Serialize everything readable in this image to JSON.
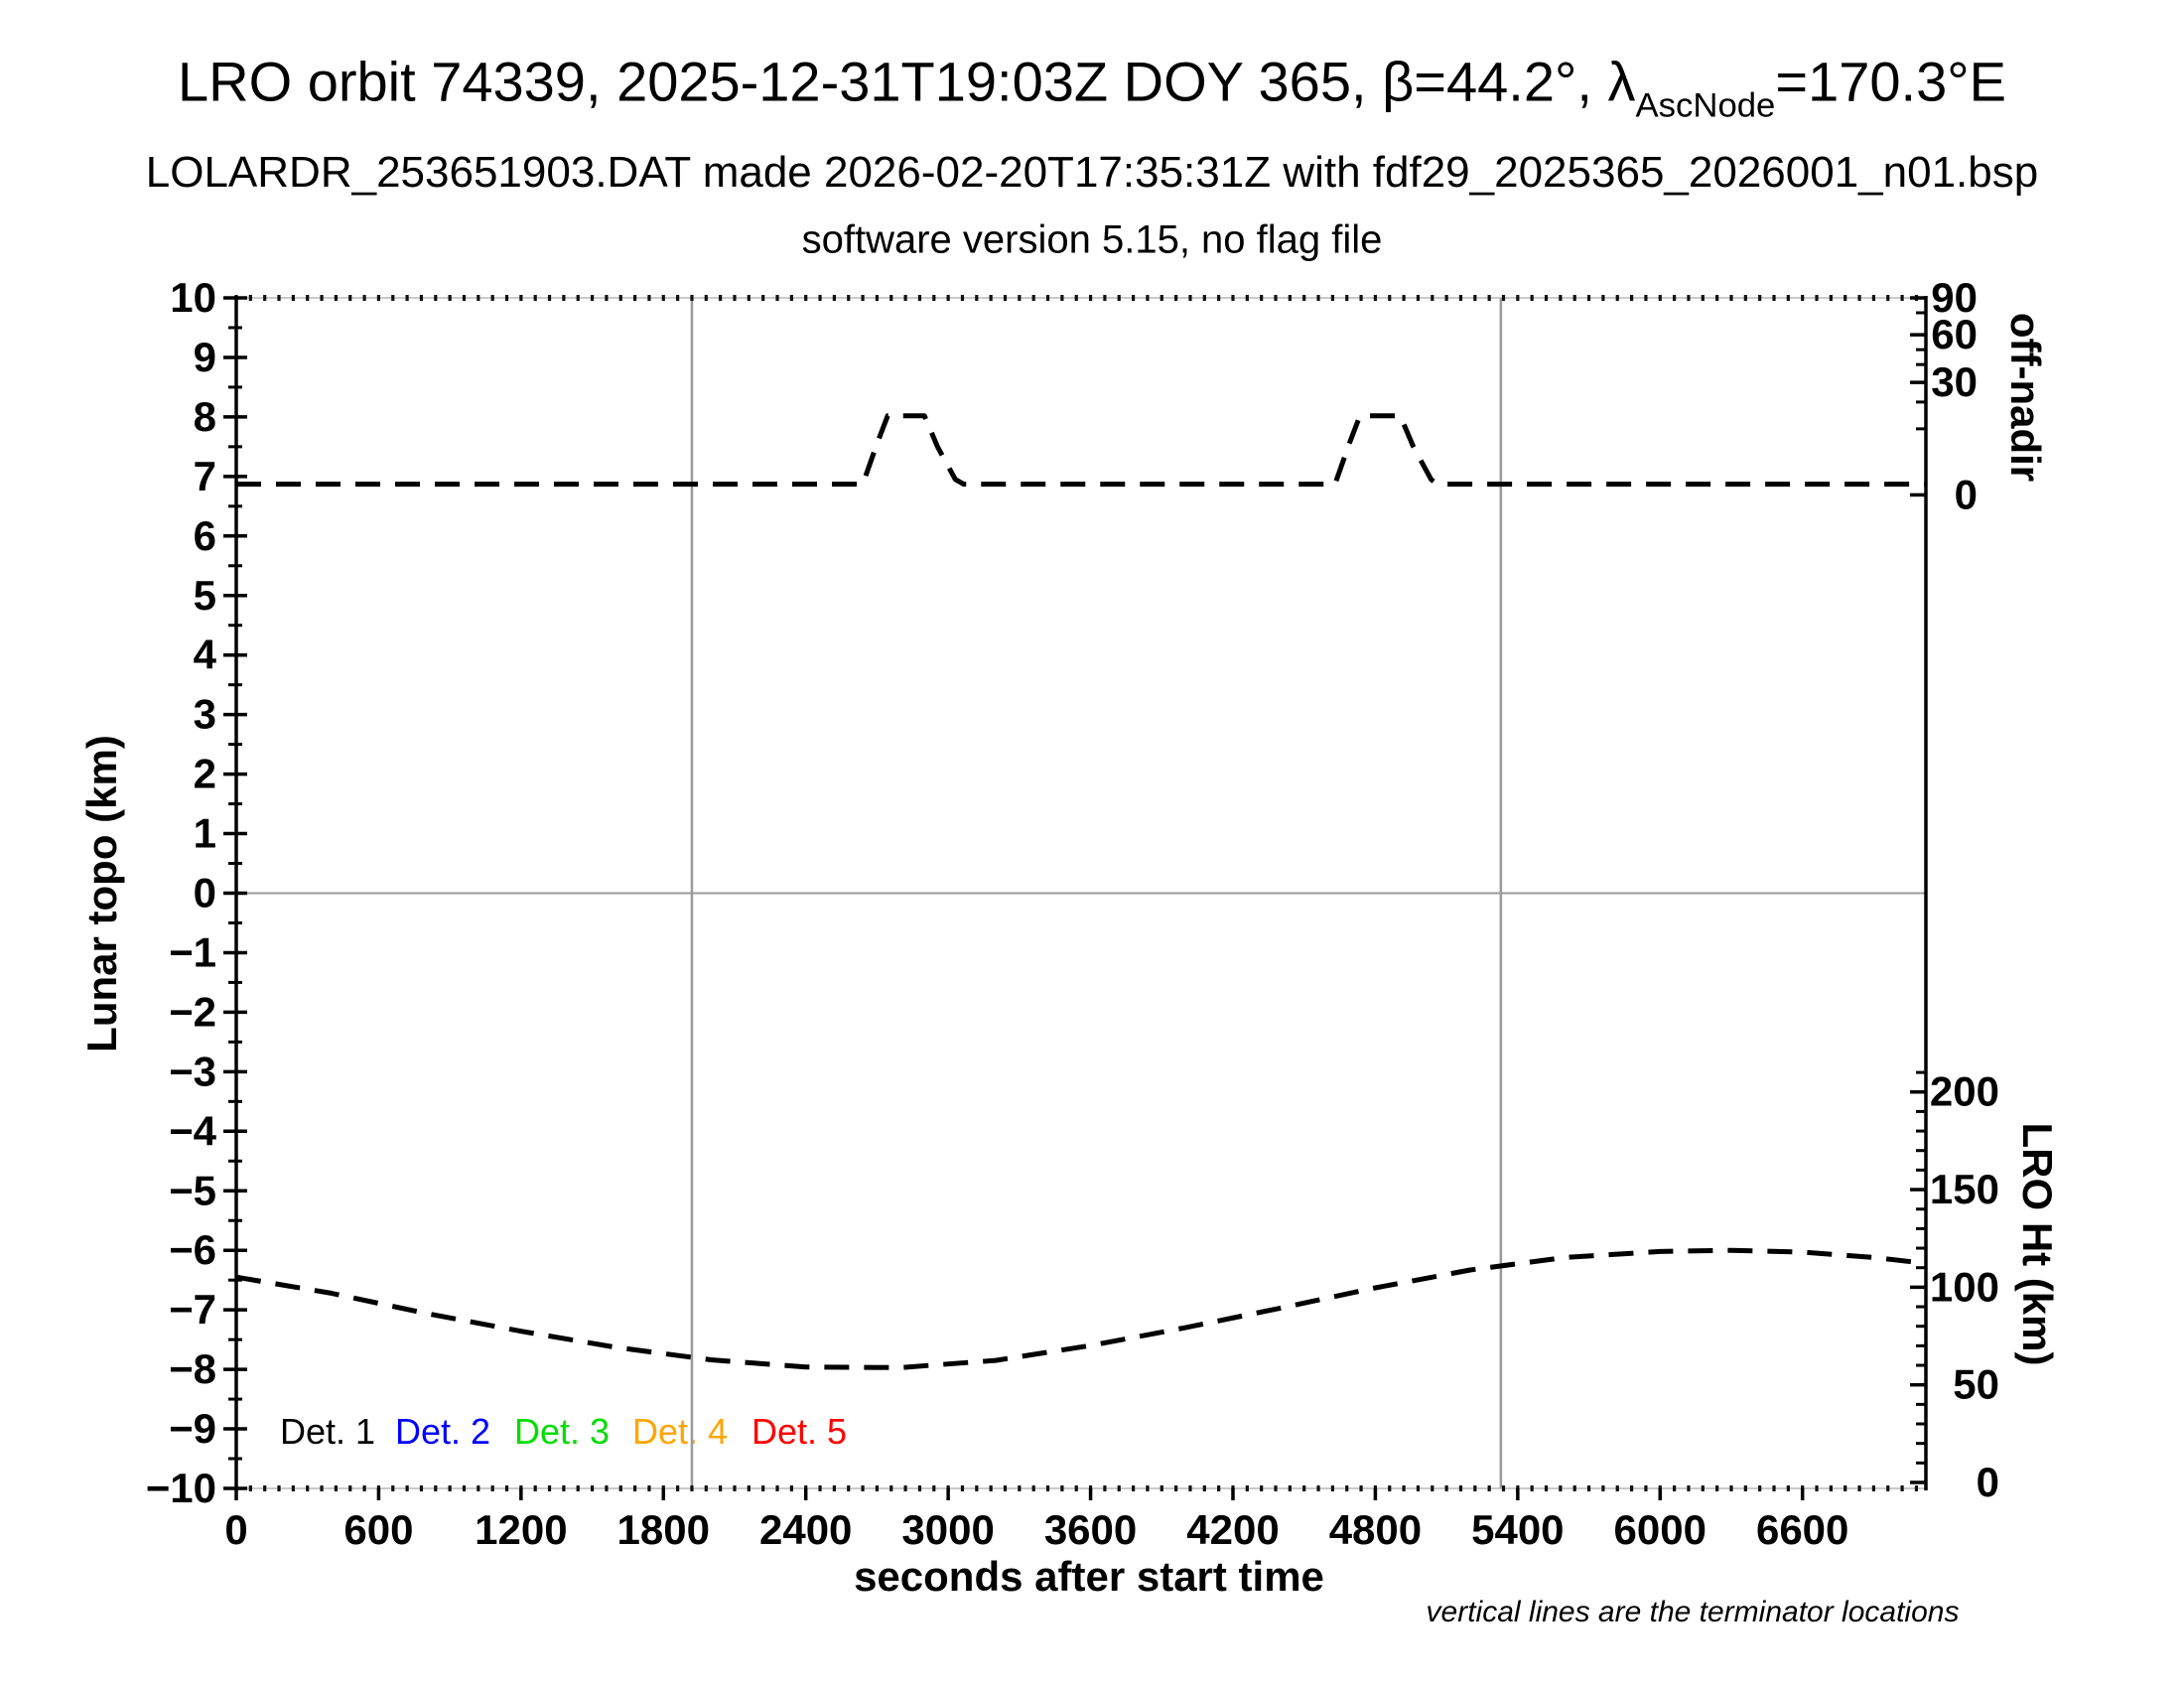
{
  "title": {
    "line1_pre": "LRO orbit 74339, 2025-12-31T19:03Z DOY 365, β=44.2°, λ",
    "line1_sub": "AscNode",
    "line1_post": "=170.3°E",
    "line2": "LOLARDR_253651903.DAT made 2026-02-20T17:35:31Z with fdf29_2025365_2026001_n01.bsp",
    "line3": "software version 5.15, no flag file"
  },
  "axes_labels": {
    "left": "Lunar topo (km)",
    "right_top": "off-nadir",
    "right_bottom": "LRO Ht (km)",
    "bottom": "seconds after start time"
  },
  "note": "vertical lines are the terminator locations",
  "legend": {
    "items": [
      {
        "label": "Det. 1",
        "color": "#000000",
        "x": 282
      },
      {
        "label": "Det. 2",
        "color": "#0000ff",
        "x": 398
      },
      {
        "label": "Det. 3",
        "color": "#00dd00",
        "x": 518
      },
      {
        "label": "Det. 4",
        "color": "#ffa500",
        "x": 637
      },
      {
        "label": "Det. 5",
        "color": "#ff0000",
        "x": 757
      }
    ]
  },
  "chart_data": {
    "type": "line",
    "title": "LRO orbit 74339, 2025-12-31T19:03Z DOY 365, beta=44.2deg, lambda_AscNode=170.3E",
    "xlabel": "seconds after start time",
    "ylabel_left": "Lunar topo (km)",
    "ylabel_right_top": "off-nadir",
    "ylabel_right_bottom": "LRO Ht (km)",
    "x_range_s": [
      0,
      7120
    ],
    "grid": "zero-line and terminator verticals only",
    "left_axis": {
      "min": -10,
      "max": 10,
      "major_step": 1,
      "minor_step": 0.5,
      "tick_labels": [
        "10",
        "9",
        "8",
        "7",
        "6",
        "5",
        "4",
        "3",
        "2",
        "1",
        "0",
        "−1",
        "−2",
        "−3",
        "−4",
        "−5",
        "−6",
        "−7",
        "−8",
        "−9",
        "−10"
      ],
      "tick_values": [
        10,
        9,
        8,
        7,
        6,
        5,
        4,
        3,
        2,
        1,
        0,
        -1,
        -2,
        -3,
        -4,
        -5,
        -6,
        -7,
        -8,
        -9,
        -10
      ]
    },
    "bottom_axis": {
      "tick_values": [
        0,
        600,
        1200,
        1800,
        2400,
        3000,
        3600,
        4200,
        4800,
        5400,
        6000,
        6600
      ],
      "tick_labels": [
        "0",
        "600",
        "1200",
        "1800",
        "2400",
        "3000",
        "3600",
        "4200",
        "4800",
        "5400",
        "6000",
        "6600"
      ],
      "minor_dot_step_s": 60
    },
    "right_top_axis": {
      "label": "off-nadir",
      "majors": [
        {
          "label": "90",
          "topo_pos": 10.0
        },
        {
          "label": "60",
          "topo_pos": 9.38
        },
        {
          "label": "30",
          "topo_pos": 8.58
        },
        {
          "label": "0",
          "topo_pos": 6.69
        }
      ],
      "minors_topo_pos": [
        9.75,
        9.13,
        8.88,
        8.25,
        7.8
      ],
      "scale": "nonlinear (compressed toward 90)"
    },
    "right_bottom_axis": {
      "label": "LRO Ht (km)",
      "majors": [
        {
          "label": "0",
          "km": 0
        },
        {
          "label": "50",
          "km": 50
        },
        {
          "label": "100",
          "km": 100
        },
        {
          "label": "150",
          "km": 150
        },
        {
          "label": "200",
          "km": 200
        }
      ],
      "km0_topo_pos": -9.9,
      "topo_per_km": 0.0328,
      "minor_km_step": 10,
      "minor_km_max": 210
    },
    "terminators_s": [
      1920,
      5329
    ],
    "zero_line_topo": 0,
    "series": [
      {
        "name": "off-nadir angle",
        "color": "#000000",
        "style": "dashed",
        "baseline_deg_approx": 2,
        "peak_deg_approx": 21,
        "points_t_topo": [
          [
            0,
            6.87
          ],
          [
            2640,
            6.87
          ],
          [
            2700,
            7.55
          ],
          [
            2745,
            8.02
          ],
          [
            2900,
            8.02
          ],
          [
            2955,
            7.5
          ],
          [
            3030,
            6.95
          ],
          [
            3065,
            6.87
          ],
          [
            4630,
            6.87
          ],
          [
            4690,
            7.55
          ],
          [
            4735,
            8.02
          ],
          [
            4905,
            8.02
          ],
          [
            4960,
            7.5
          ],
          [
            5035,
            6.95
          ],
          [
            5060,
            6.87
          ],
          [
            7120,
            6.87
          ]
        ]
      },
      {
        "name": "LRO height",
        "color": "#000000",
        "style": "dashed",
        "approx_km": {
          "start": 105,
          "min": 59,
          "max": 119,
          "end": 112
        },
        "points_t_topo": [
          [
            0,
            -6.45
          ],
          [
            400,
            -6.72
          ],
          [
            800,
            -7.06
          ],
          [
            1200,
            -7.36
          ],
          [
            1600,
            -7.63
          ],
          [
            2000,
            -7.84
          ],
          [
            2400,
            -7.96
          ],
          [
            2800,
            -7.97
          ],
          [
            3200,
            -7.85
          ],
          [
            3600,
            -7.6
          ],
          [
            4000,
            -7.3
          ],
          [
            4400,
            -6.97
          ],
          [
            4800,
            -6.63
          ],
          [
            5200,
            -6.33
          ],
          [
            5600,
            -6.12
          ],
          [
            6000,
            -6.02
          ],
          [
            6300,
            -6.0
          ],
          [
            6600,
            -6.03
          ],
          [
            6900,
            -6.12
          ],
          [
            7120,
            -6.22
          ]
        ]
      }
    ]
  }
}
